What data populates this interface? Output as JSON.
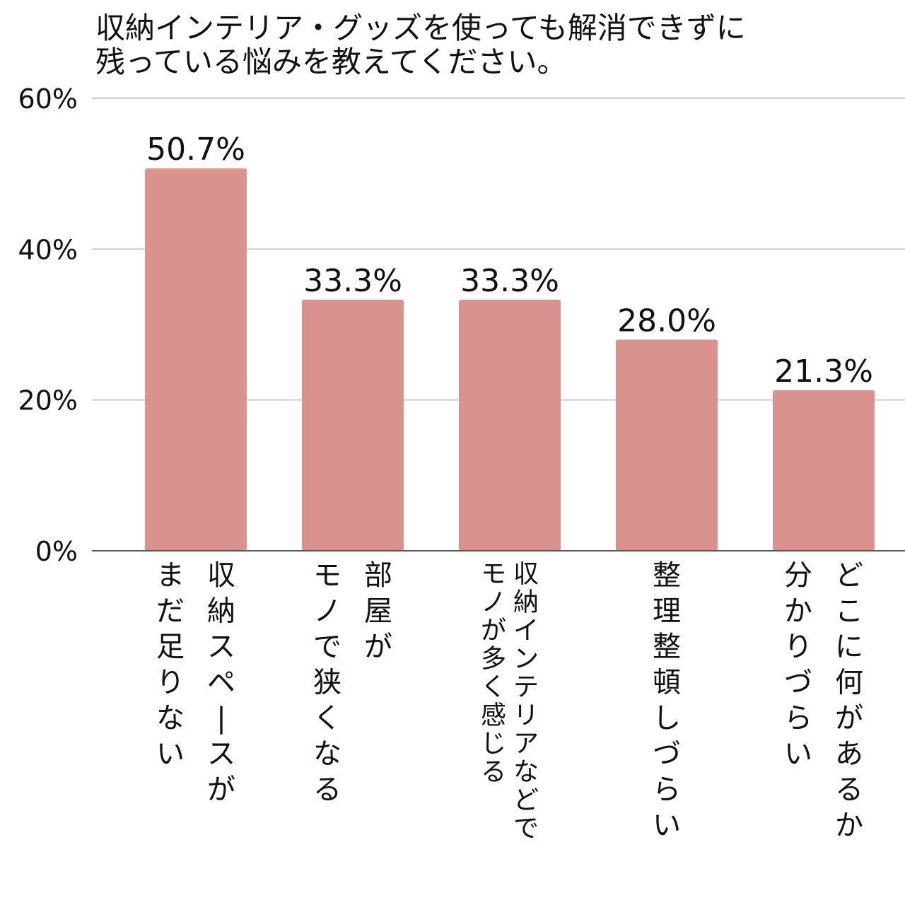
{
  "chart_data": {
    "type": "bar",
    "title_lines": [
      "収納インテリア・グッズを使っても解消できずに",
      "残っている悩みを教えてください。"
    ],
    "categories": [
      [
        "収納スペースが",
        "まだ足りない"
      ],
      [
        "部屋が",
        "モノで狭くなる"
      ],
      [
        "収納インテリアなどで",
        "モノが多く感じる"
      ],
      [
        "整理整頓しづらい"
      ],
      [
        "どこに何があるか",
        "分かりづらい"
      ]
    ],
    "values": [
      50.7,
      33.3,
      33.3,
      28.0,
      21.3
    ],
    "value_labels": [
      "50.7%",
      "33.3%",
      "33.3%",
      "28.0%",
      "21.3%"
    ],
    "yticks": [
      {
        "value": 0,
        "label": "0%"
      },
      {
        "value": 20,
        "label": "20%"
      },
      {
        "value": 40,
        "label": "40%"
      },
      {
        "value": 60,
        "label": "60%"
      }
    ],
    "ylim": [
      0,
      60
    ],
    "grid": true,
    "colors": {
      "bar": "#d9928d",
      "grid": "#cccccc",
      "axis": "#555555",
      "text": "#111111"
    }
  }
}
